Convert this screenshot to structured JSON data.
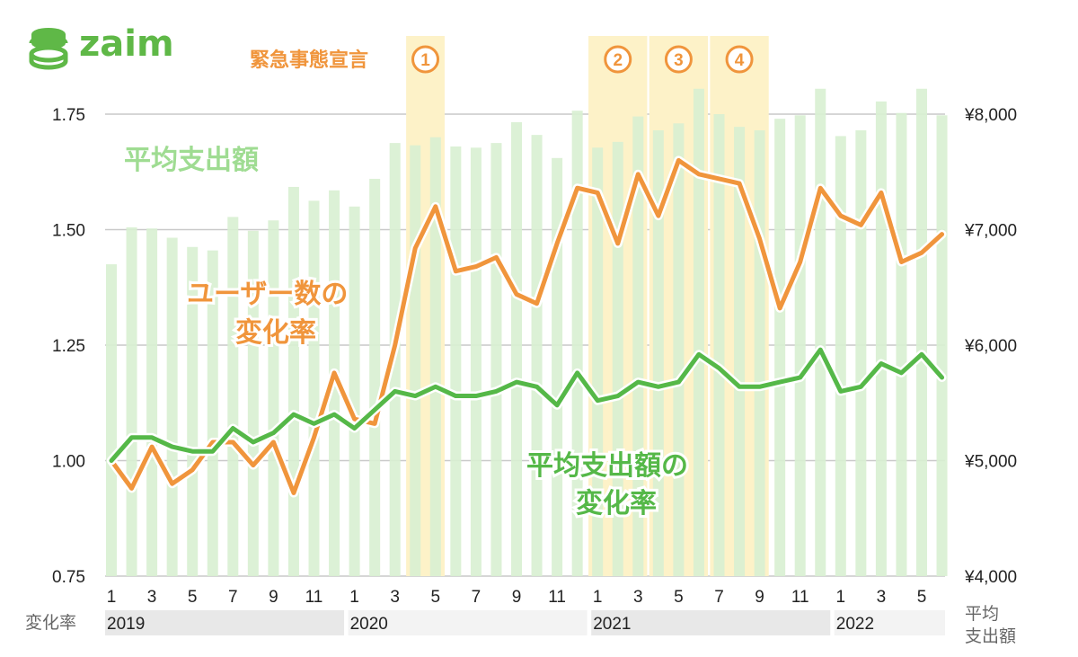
{
  "logo": {
    "text": "zaim"
  },
  "emergency_label": "緊急事態宣言",
  "chart_data": {
    "type": "bar+line",
    "categories": [
      "2019-01",
      "2019-02",
      "2019-03",
      "2019-04",
      "2019-05",
      "2019-06",
      "2019-07",
      "2019-08",
      "2019-09",
      "2019-10",
      "2019-11",
      "2019-12",
      "2020-01",
      "2020-02",
      "2020-03",
      "2020-04",
      "2020-05",
      "2020-06",
      "2020-07",
      "2020-08",
      "2020-09",
      "2020-10",
      "2020-11",
      "2020-12",
      "2021-01",
      "2021-02",
      "2021-03",
      "2021-04",
      "2021-05",
      "2021-06",
      "2021-07",
      "2021-08",
      "2021-09",
      "2021-10",
      "2021-11",
      "2021-12",
      "2022-01",
      "2022-02",
      "2022-03",
      "2022-04",
      "2022-05",
      "2022-06"
    ],
    "bars": {
      "name": "平均支出額",
      "axis": "right",
      "values": [
        6700,
        7020,
        7010,
        6930,
        6850,
        6820,
        7110,
        6990,
        7080,
        7370,
        7250,
        7340,
        7200,
        7440,
        7750,
        7730,
        7800,
        7720,
        7710,
        7750,
        7930,
        7820,
        7620,
        8030,
        7710,
        7760,
        7980,
        7860,
        7920,
        8220,
        8000,
        7890,
        7860,
        7960,
        7990,
        8220,
        7810,
        7860,
        8110,
        8010,
        8220,
        7990
      ]
    },
    "series": [
      {
        "name": "ユーザー数の変化率",
        "color": "#f0953c",
        "axis": "left",
        "values": [
          1.0,
          0.94,
          1.03,
          0.95,
          0.98,
          1.04,
          1.04,
          0.99,
          1.04,
          0.93,
          1.05,
          1.19,
          1.09,
          1.08,
          1.25,
          1.46,
          1.55,
          1.41,
          1.42,
          1.44,
          1.36,
          1.34,
          1.47,
          1.59,
          1.58,
          1.47,
          1.62,
          1.53,
          1.65,
          1.62,
          1.61,
          1.6,
          1.48,
          1.33,
          1.43,
          1.59,
          1.53,
          1.51,
          1.58,
          1.43,
          1.45,
          1.49
        ]
      },
      {
        "name": "平均支出額の変化率",
        "color": "#55b848",
        "axis": "left",
        "values": [
          1.0,
          1.05,
          1.05,
          1.03,
          1.02,
          1.02,
          1.07,
          1.04,
          1.06,
          1.1,
          1.08,
          1.1,
          1.07,
          1.11,
          1.15,
          1.14,
          1.16,
          1.14,
          1.14,
          1.15,
          1.17,
          1.16,
          1.12,
          1.19,
          1.13,
          1.14,
          1.17,
          1.16,
          1.17,
          1.23,
          1.2,
          1.16,
          1.16,
          1.17,
          1.18,
          1.24,
          1.15,
          1.16,
          1.21,
          1.19,
          1.23,
          1.18
        ]
      }
    ],
    "left_axis": {
      "ticks": [
        "0.75",
        "1.00",
        "1.25",
        "1.50",
        "1.75"
      ],
      "range": [
        0.75,
        1.75
      ],
      "caption": "変化率"
    },
    "right_axis": {
      "ticks": [
        "¥4,000",
        "¥5,000",
        "¥6,000",
        "¥7,000",
        "¥8,000"
      ],
      "range": [
        4000,
        8000
      ],
      "caption_line1": "平均",
      "caption_line2": "支出額"
    },
    "x_ticks": [
      "1",
      "3",
      "5",
      "7",
      "9",
      "11",
      "1",
      "3",
      "5",
      "7",
      "9",
      "11",
      "1",
      "3",
      "5",
      "7",
      "9",
      "11",
      "1",
      "3",
      "5"
    ],
    "years": [
      "2019",
      "2020",
      "2021",
      "2022"
    ],
    "emergency_periods": [
      {
        "label": "1",
        "start": "2020-04",
        "end": "2020-05"
      },
      {
        "label": "2",
        "start": "2021-01",
        "end": "2021-03"
      },
      {
        "label": "3",
        "start": "2021-04",
        "end": "2021-06"
      },
      {
        "label": "4",
        "start": "2021-07",
        "end": "2021-09"
      }
    ],
    "annotations": {
      "bars_label": "平均支出額",
      "users_label_line1": "ユーザー数の",
      "users_label_line2": "変化率",
      "spend_label_line1": "平均支出額の",
      "spend_label_line2": "変化率"
    },
    "grid": true,
    "colors": {
      "bar": "#d8f0d2",
      "users": "#f0953c",
      "spend": "#55b848",
      "highlight": "#fdf2c8",
      "grid": "#c9c9c9",
      "year_band": "#e8e8e8"
    }
  }
}
